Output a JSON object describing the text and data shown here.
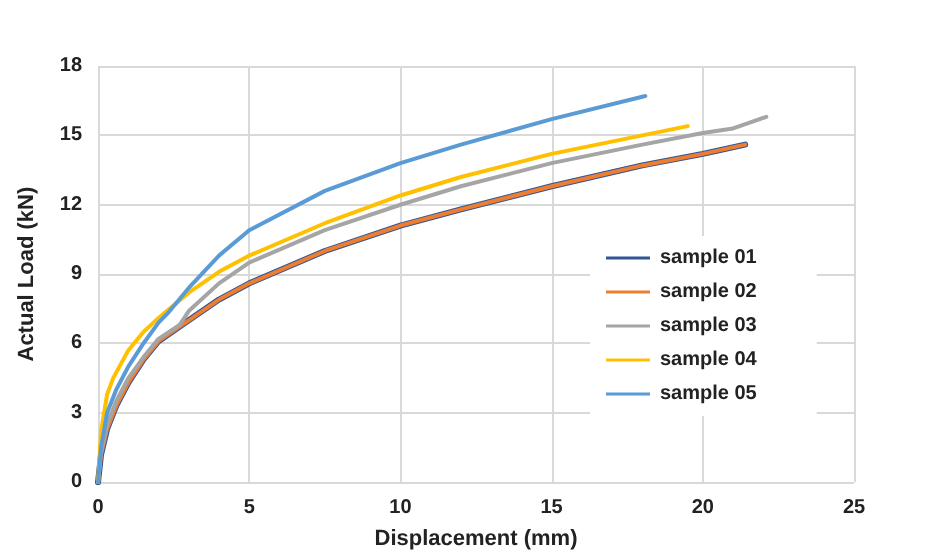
{
  "chart_data": {
    "type": "line",
    "xlabel": "Displacement (mm)",
    "ylabel": "Actual Load (kN)",
    "xlim": [
      0,
      25
    ],
    "xticks": [
      0,
      5,
      10,
      15,
      20,
      25
    ],
    "ylim": [
      0,
      18
    ],
    "yticks": [
      0,
      3,
      6,
      9,
      12,
      15,
      18
    ],
    "grid": true,
    "legend": "right",
    "marker": "none",
    "line_style": "solid",
    "series": [
      {
        "name": "sample 01",
        "color": "#2f5597",
        "x": [
          0,
          0.1,
          0.3,
          0.6,
          1,
          1.5,
          2,
          3,
          4,
          5,
          7.5,
          10,
          12,
          15,
          18,
          20,
          21.4
        ],
        "values": [
          0,
          1.2,
          2.3,
          3.3,
          4.3,
          5.3,
          6.1,
          7.0,
          7.9,
          8.6,
          10.0,
          11.1,
          11.8,
          12.8,
          13.7,
          14.2,
          14.6
        ]
      },
      {
        "name": "sample 02",
        "color": "#ed7d31",
        "x": [
          0,
          0.1,
          0.3,
          0.6,
          1,
          1.5,
          2,
          3,
          4,
          5,
          7.5,
          10,
          12,
          15,
          18,
          20,
          21.4
        ],
        "values": [
          0,
          1.2,
          2.3,
          3.3,
          4.3,
          5.3,
          6.1,
          7.0,
          7.9,
          8.6,
          10.0,
          11.1,
          11.8,
          12.8,
          13.7,
          14.2,
          14.6
        ]
      },
      {
        "name": "sample 03",
        "color": "#a5a5a5",
        "x": [
          0,
          0.1,
          0.3,
          0.6,
          1,
          1.5,
          2,
          2.7,
          3,
          4,
          5,
          7.5,
          10,
          12,
          15,
          18,
          20,
          21,
          22.1
        ],
        "values": [
          0,
          1.3,
          2.5,
          3.5,
          4.5,
          5.4,
          6.2,
          6.8,
          7.4,
          8.6,
          9.5,
          10.9,
          12.0,
          12.8,
          13.8,
          14.6,
          15.1,
          15.3,
          15.8
        ]
      },
      {
        "name": "sample 04",
        "color": "#ffc000",
        "x": [
          0,
          0.1,
          0.3,
          0.5,
          1,
          1.5,
          2,
          3,
          4,
          5,
          7.5,
          10,
          12,
          15,
          18,
          19.5
        ],
        "values": [
          0,
          2.2,
          3.8,
          4.5,
          5.7,
          6.5,
          7.1,
          8.2,
          9.1,
          9.8,
          11.2,
          12.4,
          13.2,
          14.2,
          15.0,
          15.4
        ]
      },
      {
        "name": "sample 05",
        "color": "#5b9bd5",
        "x": [
          0,
          0.1,
          0.3,
          0.6,
          1,
          1.5,
          2,
          2.3,
          3,
          4,
          5,
          7.5,
          10,
          12,
          15,
          18.1
        ],
        "values": [
          0,
          1.5,
          3.0,
          4.0,
          5.0,
          6.0,
          6.9,
          7.3,
          8.4,
          9.8,
          10.9,
          12.6,
          13.8,
          14.6,
          15.7,
          16.7
        ]
      }
    ]
  }
}
